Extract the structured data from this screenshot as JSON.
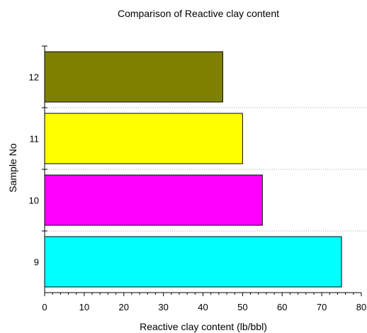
{
  "chart_data": {
    "type": "bar",
    "orientation": "horizontal",
    "title": "Comparison of Reactive clay content",
    "xlabel": "Reactive clay content (lb/bbl)",
    "ylabel": "Sample No",
    "xlim": [
      0,
      80
    ],
    "x_ticks": [
      0,
      10,
      20,
      30,
      40,
      50,
      60,
      70,
      80
    ],
    "categories": [
      "9",
      "10",
      "11",
      "12"
    ],
    "values": [
      75,
      55,
      50,
      45
    ],
    "colors": [
      "#00FFFF",
      "#FF00FF",
      "#FFFF00",
      "#808000"
    ],
    "grid": "horizontal dotted separators between categories",
    "legend": "none"
  }
}
